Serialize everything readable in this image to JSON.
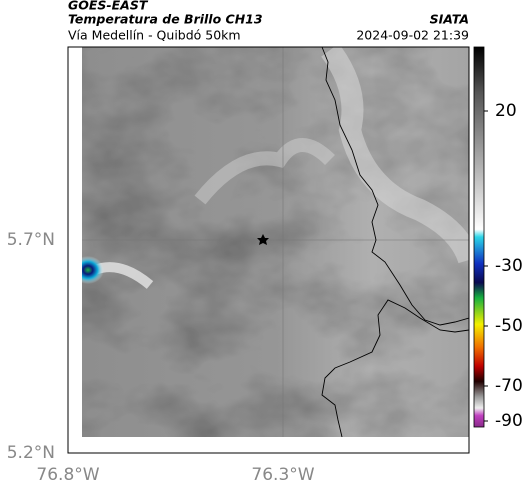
{
  "header": {
    "title": "GOES-EAST",
    "subtitle": "Temperatura de Brillo CH13",
    "source": "SIATA",
    "region": "Vía Medellín - Quibdó 50km",
    "timestamp": "2024-09-02 21:39"
  },
  "map": {
    "lat_labels": [
      "5.7°N",
      "5.2°N"
    ],
    "lon_labels": [
      "76.8°W",
      "76.3°W"
    ]
  },
  "colorbar": {
    "ticks": [
      "20",
      "-30",
      "-50",
      "-70",
      "-90"
    ]
  }
}
